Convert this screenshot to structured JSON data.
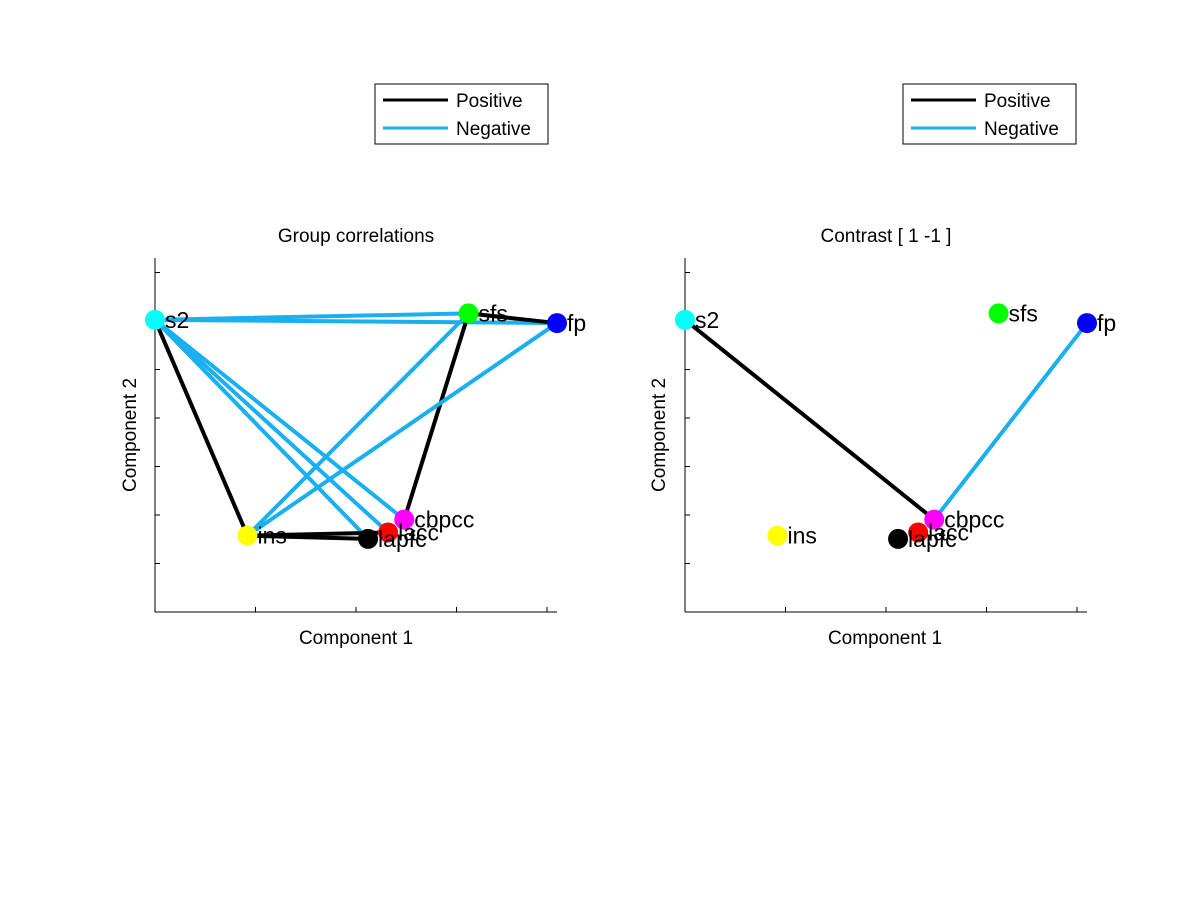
{
  "legend_labels": {
    "positive": "Positive",
    "negative": "Negative"
  },
  "colors": {
    "positive": "#000000",
    "negative": "#1aafef"
  },
  "chart_data": [
    {
      "type": "scatter",
      "title": "Group correlations",
      "xlabel": "Component 1",
      "ylabel": "Component 2",
      "grid": false,
      "legend": "above-right",
      "legend_entries": [
        "Positive",
        "Negative"
      ],
      "nodes": [
        {
          "label": "s2",
          "x": 0.0,
          "y": 0.83,
          "color": "#00ffff"
        },
        {
          "label": "sfs",
          "x": 0.78,
          "y": 0.85,
          "color": "#00ff00"
        },
        {
          "label": "fp",
          "x": 1.0,
          "y": 0.82,
          "color": "#0000ff"
        },
        {
          "label": "ins",
          "x": 0.23,
          "y": 0.16,
          "color": "#ffff00"
        },
        {
          "label": "lacc",
          "x": 0.58,
          "y": 0.17,
          "color": "#ff0000"
        },
        {
          "label": "cbpcc",
          "x": 0.62,
          "y": 0.21,
          "color": "#ff00ff"
        },
        {
          "label": "lapfc",
          "x": 0.53,
          "y": 0.15,
          "color": "#000000"
        }
      ],
      "edges": [
        {
          "from": "s2",
          "to": "sfs",
          "sign": "negative"
        },
        {
          "from": "s2",
          "to": "fp",
          "sign": "negative"
        },
        {
          "from": "s2",
          "to": "ins",
          "sign": "positive"
        },
        {
          "from": "s2",
          "to": "cbpcc",
          "sign": "negative"
        },
        {
          "from": "s2",
          "to": "lacc",
          "sign": "negative"
        },
        {
          "from": "s2",
          "to": "lapfc",
          "sign": "negative"
        },
        {
          "from": "sfs",
          "to": "fp",
          "sign": "positive"
        },
        {
          "from": "sfs",
          "to": "ins",
          "sign": "negative"
        },
        {
          "from": "sfs",
          "to": "cbpcc",
          "sign": "positive"
        },
        {
          "from": "fp",
          "to": "ins",
          "sign": "negative"
        },
        {
          "from": "ins",
          "to": "lapfc",
          "sign": "positive"
        },
        {
          "from": "ins",
          "to": "lacc",
          "sign": "positive"
        }
      ]
    },
    {
      "type": "scatter",
      "title": "Contrast [ 1 -1 ]",
      "xlabel": "Component 1",
      "ylabel": "Component 2",
      "grid": false,
      "legend": "above-right",
      "legend_entries": [
        "Positive",
        "Negative"
      ],
      "nodes": [
        {
          "label": "s2",
          "x": 0.0,
          "y": 0.83,
          "color": "#00ffff"
        },
        {
          "label": "sfs",
          "x": 0.78,
          "y": 0.85,
          "color": "#00ff00"
        },
        {
          "label": "fp",
          "x": 1.0,
          "y": 0.82,
          "color": "#0000ff"
        },
        {
          "label": "ins",
          "x": 0.23,
          "y": 0.16,
          "color": "#ffff00"
        },
        {
          "label": "lacc",
          "x": 0.58,
          "y": 0.17,
          "color": "#ff0000"
        },
        {
          "label": "cbpcc",
          "x": 0.62,
          "y": 0.21,
          "color": "#ff00ff"
        },
        {
          "label": "lapfc",
          "x": 0.53,
          "y": 0.15,
          "color": "#000000"
        }
      ],
      "edges": [
        {
          "from": "s2",
          "to": "cbpcc",
          "sign": "positive"
        },
        {
          "from": "fp",
          "to": "cbpcc",
          "sign": "negative"
        }
      ]
    }
  ]
}
